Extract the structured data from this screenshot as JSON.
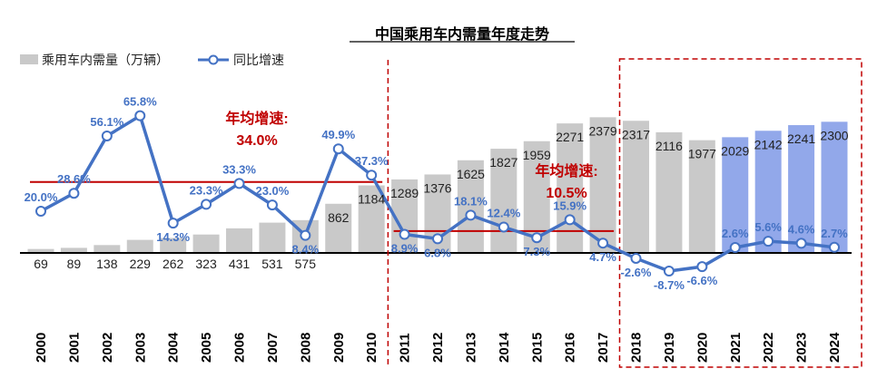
{
  "chart_data": {
    "type": "bar",
    "title": "中国乘用车内需量年度走势",
    "legend": {
      "bar_label": "乘用车内需量（万辆）",
      "line_label": "同比增速",
      "placement": "top-left"
    },
    "categories": [
      "2000",
      "2001",
      "2002",
      "2003",
      "2004",
      "2005",
      "2006",
      "2007",
      "2008",
      "2009",
      "2010",
      "2011",
      "2012",
      "2013",
      "2014",
      "2015",
      "2016",
      "2017",
      "2018",
      "2019",
      "2020",
      "2021",
      "2022",
      "2023",
      "2024"
    ],
    "series": [
      {
        "name": "乘用车内需量（万辆）",
        "kind": "bar",
        "values": [
          69,
          89,
          138,
          229,
          262,
          323,
          431,
          531,
          575,
          862,
          1184,
          1289,
          1376,
          1625,
          1827,
          1959,
          2271,
          2379,
          2317,
          2116,
          1977,
          2029,
          2142,
          2241,
          2300
        ],
        "labels": [
          "69",
          "89",
          "138",
          "229",
          "262",
          "323",
          "431",
          "531",
          "575",
          "862",
          "1184",
          "1289",
          "1376",
          "1625",
          "1827",
          "1959",
          "2271",
          "2379",
          "2317",
          "2116",
          "1977",
          "2029",
          "2142",
          "2241",
          "2300"
        ],
        "highlight_from_index": 21
      },
      {
        "name": "同比增速",
        "kind": "line",
        "values": [
          20.0,
          28.6,
          56.1,
          65.8,
          14.3,
          23.3,
          33.3,
          23.0,
          8.4,
          49.9,
          37.3,
          8.9,
          6.8,
          18.1,
          12.4,
          7.3,
          15.9,
          4.7,
          -2.6,
          -8.7,
          -6.6,
          2.6,
          5.6,
          4.6,
          2.7
        ],
        "labels": [
          "20.0%",
          "28.6%",
          "56.1%",
          "65.8%",
          "14.3%",
          "23.3%",
          "33.3%",
          "23.0%",
          "8.4%",
          "49.9%",
          "37.3%",
          "8.9%",
          "6.8%",
          "18.1%",
          "12.4%",
          "7.3%",
          "15.9%",
          "4.7%",
          "-2.6%",
          "-8.7%",
          "-6.6%",
          "2.6%",
          "5.6%",
          "4.6%",
          "2.7%"
        ]
      }
    ],
    "reference_lines": [
      {
        "start": "2000",
        "end": "2010",
        "value": 34.0
      },
      {
        "start": "2011",
        "end": "2017",
        "value": 10.5
      }
    ],
    "annotations": [
      {
        "title": "年均增速:",
        "value": "34.0%"
      },
      {
        "title": "年均增速:",
        "value": "10.5%"
      }
    ],
    "divider_after": "2010",
    "highlight_box": {
      "start": "2018",
      "end": "2024"
    },
    "bar_ylim": [
      0,
      3100
    ],
    "line_ylim": [
      -30,
      85
    ],
    "colors": {
      "bar": "#c9c9c9",
      "bar_highlight": "#92a8ea",
      "line": "#4472c4",
      "label_blue": "#4472c4",
      "reference": "#c00000",
      "annotation": "#c00000",
      "axis": "#000000"
    }
  }
}
